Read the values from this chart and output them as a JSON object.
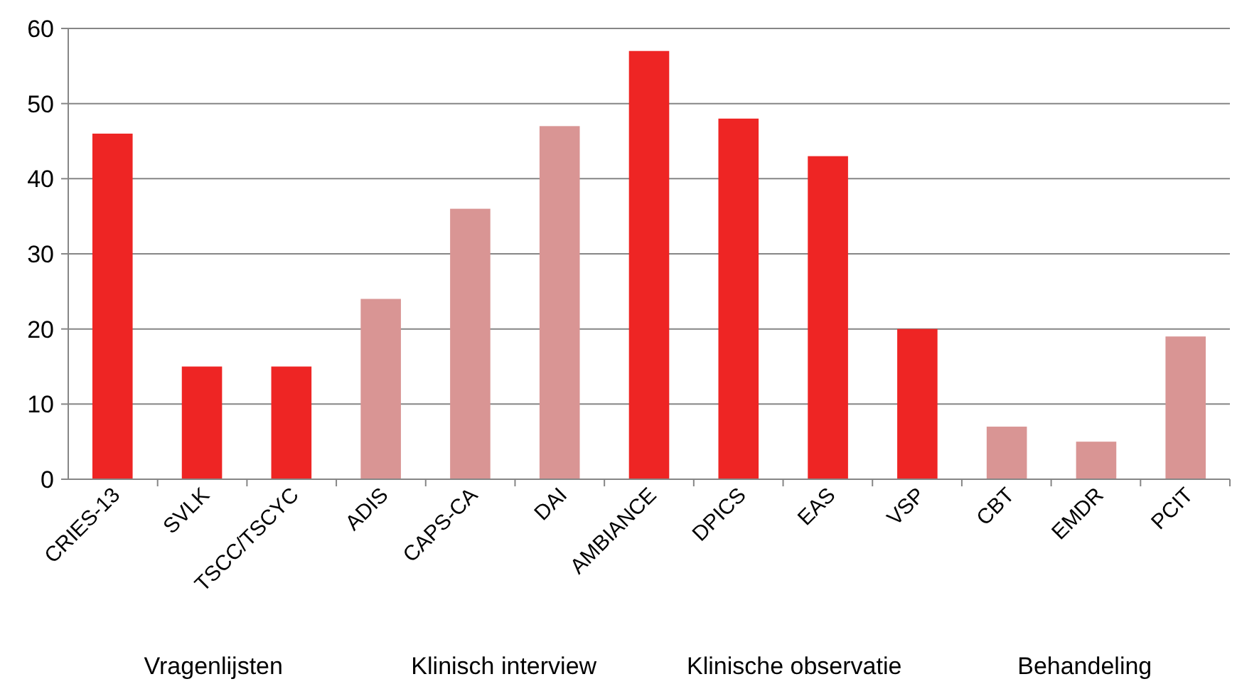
{
  "chart_data": {
    "type": "bar",
    "categories": [
      "CRIES-13",
      "SVLK",
      "TSCC/TSCYC",
      "ADIS",
      "CAPS-CA",
      "DAI",
      "AMBIANCE",
      "DPICS",
      "EAS",
      "VSP",
      "CBT",
      "EMDR",
      "PCIT"
    ],
    "values": [
      46,
      15,
      15,
      24,
      36,
      47,
      57,
      48,
      43,
      20,
      7,
      5,
      19
    ],
    "colors": [
      "#ee2524",
      "#ee2524",
      "#ee2524",
      "#d99594",
      "#d99594",
      "#d99594",
      "#ee2524",
      "#ee2524",
      "#ee2524",
      "#ee2524",
      "#d99594",
      "#d99594",
      "#d99594"
    ],
    "ylim": [
      0,
      60
    ],
    "yticks": [
      0,
      10,
      20,
      30,
      40,
      50,
      60
    ],
    "grid": "y",
    "annotations": [
      "Vragenlijsten",
      "Klinisch interview",
      "Klinische observatie",
      "Behandeling"
    ]
  }
}
